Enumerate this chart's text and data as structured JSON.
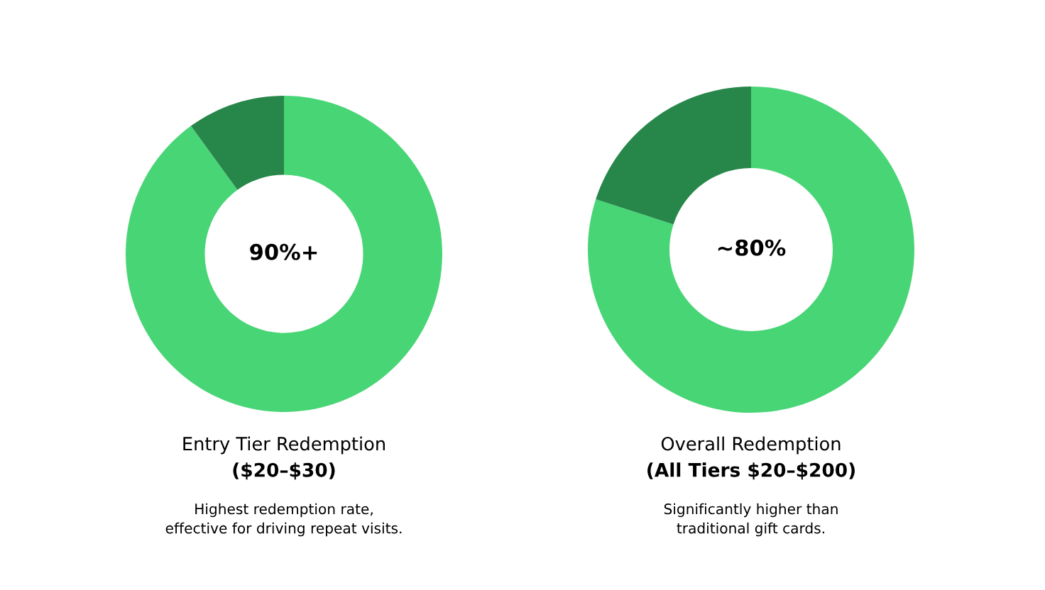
{
  "chart_data": [
    {
      "type": "donut",
      "title": "Entry Tier Redemption",
      "subtitle": "($20–$30)",
      "categories": [
        null,
        null
      ],
      "values": [
        90,
        10
      ],
      "colors": [
        "#48d575",
        "#27874a"
      ],
      "annotations": [
        "90%+",
        "Highest redemption rate,\neffective for driving repeat visits."
      ]
    },
    {
      "type": "donut",
      "title": "Overall Redemption",
      "subtitle": "(All Tiers $20–$200)",
      "categories": [
        null,
        null
      ],
      "values": [
        80,
        20
      ],
      "colors": [
        "#48d575",
        "#27874a"
      ],
      "annotations": [
        "~80%",
        "Significantly higher than\ntraditional gift cards."
      ]
    }
  ]
}
